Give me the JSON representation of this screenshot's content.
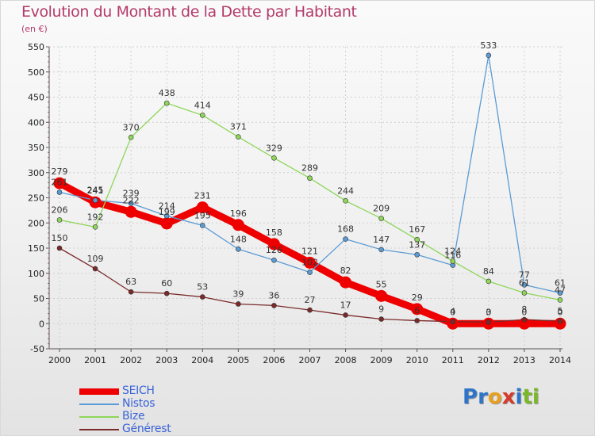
{
  "title": "Evolution du Montant de la Dette par Habitant",
  "subtitle": "(en €)",
  "logo": {
    "text": "Proxiti",
    "letters": [
      {
        "ch": "P",
        "color": "#2e75c9"
      },
      {
        "ch": "r",
        "color": "#2e75c9"
      },
      {
        "ch": "o",
        "color": "#e8a020"
      },
      {
        "ch": "x",
        "color": "#d63a2a"
      },
      {
        "ch": "i",
        "color": "#2e75c9"
      },
      {
        "ch": "t",
        "color": "#7bb829"
      },
      {
        "ch": "i",
        "color": "#7bb829"
      }
    ]
  },
  "colors": {
    "axis": "#555555",
    "grid": "#cfcfcf",
    "tick_label": "#222222",
    "value_label": "#333333",
    "legend_text": "#3a63d8"
  },
  "chart_data": {
    "type": "line",
    "title": "Evolution du Montant de la Dette par Habitant",
    "subtitle": "(en €)",
    "x": [
      "2000",
      "2001",
      "2002",
      "2003",
      "2004",
      "2005",
      "2006",
      "2007",
      "2008",
      "2009",
      "2010",
      "2011",
      "2012",
      "2013",
      "2014"
    ],
    "ylim": [
      -50,
      550
    ],
    "yticks": [
      -50,
      0,
      50,
      100,
      150,
      200,
      250,
      300,
      350,
      400,
      450,
      500,
      550
    ],
    "grid": true,
    "legend": "bottom-left",
    "series": [
      {
        "name": "SEICH",
        "color": "#ee0000",
        "width": 9,
        "marker_r": 7.5,
        "label_dy": -9,
        "values": [
          279,
          241,
          222,
          199,
          231,
          196,
          158,
          121,
          82,
          55,
          29,
          0,
          0,
          0,
          0
        ]
      },
      {
        "name": "Nistos",
        "color": "#5b9bd5",
        "width": 1.3,
        "marker_r": 3,
        "label_dy": -7,
        "values": [
          261,
          245,
          239,
          214,
          195,
          148,
          126,
          102,
          168,
          147,
          137,
          116,
          533,
          77,
          61
        ]
      },
      {
        "name": "Bize",
        "color": "#8ed65a",
        "width": 1.3,
        "marker_r": 3,
        "label_dy": -7,
        "values": [
          206,
          192,
          370,
          438,
          414,
          371,
          329,
          289,
          244,
          209,
          167,
          124,
          84,
          61,
          47
        ]
      },
      {
        "name": "Générest",
        "color": "#7a2a2a",
        "width": 1.3,
        "marker_r": 3,
        "label_dy": -7,
        "values": [
          150,
          109,
          63,
          60,
          53,
          39,
          36,
          27,
          17,
          9,
          6,
          4,
          3,
          8,
          5
        ]
      }
    ]
  },
  "legend": [
    {
      "label": "SEICH",
      "color": "#ee0000",
      "thickness": 8
    },
    {
      "label": "Nistos",
      "color": "#5b9bd5",
      "thickness": 2
    },
    {
      "label": "Bize",
      "color": "#8ed65a",
      "thickness": 2
    },
    {
      "label": "Générest",
      "color": "#7a2a2a",
      "thickness": 2
    }
  ]
}
